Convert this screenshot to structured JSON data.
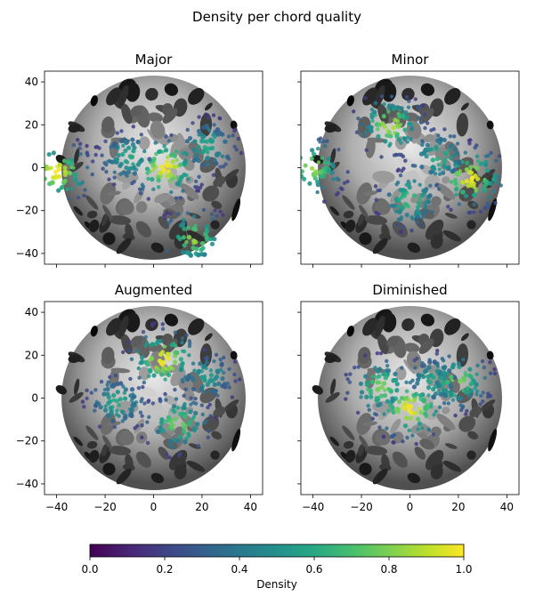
{
  "suptitle": "Density per chord quality",
  "chart_data": {
    "type": "scatter",
    "title": "Density per chord quality",
    "xlim": [
      -45,
      45
    ],
    "ylim": [
      -45,
      45
    ],
    "xticks": [
      -40,
      -20,
      0,
      20,
      40
    ],
    "yticks": [
      -40,
      -20,
      0,
      20,
      40
    ],
    "grid": false,
    "shared_axes": true,
    "background_colormap": "gray",
    "colormap": "viridis",
    "colorbar": {
      "label": "Density",
      "range": [
        0,
        1
      ],
      "ticks": [
        0.0,
        0.2,
        0.4,
        0.6,
        0.8,
        1.0
      ],
      "tick_labels": [
        "0.0",
        "0.2",
        "0.4",
        "0.6",
        "0.8",
        "1.0"
      ],
      "orientation": "horizontal",
      "placement": "bottom"
    },
    "panels": [
      {
        "title": "Major",
        "hotspots": [
          {
            "x": 5,
            "y": 0,
            "density": 1.0
          },
          {
            "x": -40,
            "y": -2,
            "density": 1.0
          },
          {
            "x": 17,
            "y": -33,
            "density": 0.85
          },
          {
            "x": -10,
            "y": 5,
            "density": 0.6
          },
          {
            "x": 22,
            "y": 10,
            "density": 0.6
          }
        ]
      },
      {
        "title": "Minor",
        "hotspots": [
          {
            "x": 25,
            "y": -5,
            "density": 1.0
          },
          {
            "x": -8,
            "y": 20,
            "density": 0.9
          },
          {
            "x": -40,
            "y": 0,
            "density": 0.85
          },
          {
            "x": 0,
            "y": -15,
            "density": 0.7
          },
          {
            "x": 12,
            "y": 5,
            "density": 0.65
          }
        ]
      },
      {
        "title": "Augmented",
        "hotspots": [
          {
            "x": 4,
            "y": 18,
            "density": 1.0
          },
          {
            "x": 10,
            "y": -12,
            "density": 0.8
          },
          {
            "x": -15,
            "y": -2,
            "density": 0.6
          },
          {
            "x": 22,
            "y": 10,
            "density": 0.55
          }
        ]
      },
      {
        "title": "Diminished",
        "hotspots": [
          {
            "x": 0,
            "y": -5,
            "density": 1.0
          },
          {
            "x": -12,
            "y": 5,
            "density": 0.8
          },
          {
            "x": 10,
            "y": 8,
            "density": 0.6
          },
          {
            "x": 20,
            "y": 8,
            "density": 0.8
          }
        ]
      }
    ]
  }
}
